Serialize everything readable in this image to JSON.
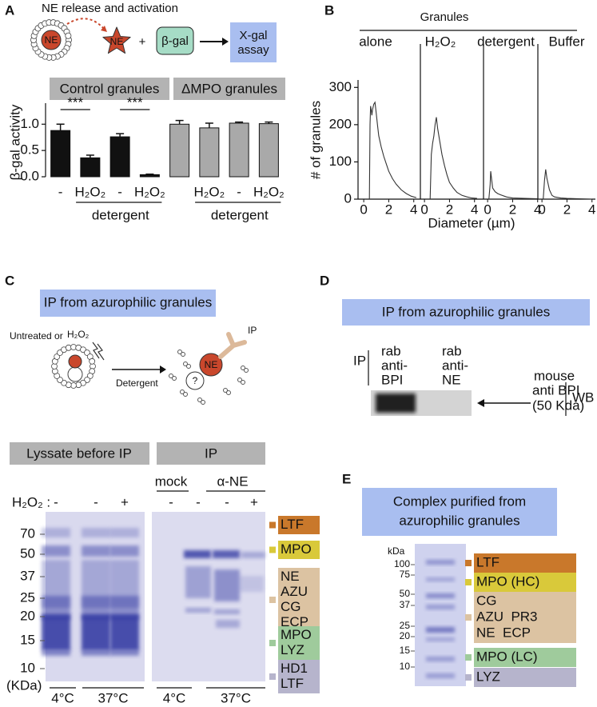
{
  "chart_data": [
    {
      "type": "bar",
      "panel": "A",
      "schematic": {
        "title": "NE release and activation",
        "ne_inside": "NE",
        "ne_released": "NE",
        "plus": "+",
        "enzyme": "β-gal",
        "assay": [
          "X-gal",
          "assay"
        ]
      },
      "groups": [
        "Control granules",
        "ΔMPO granules"
      ],
      "ylabel": "β-gal activity",
      "categories": [
        "-",
        "H₂O₂",
        "-",
        "H₂O₂",
        null,
        "H₂O₂",
        "-",
        "H₂O₂"
      ],
      "values": [
        0.88,
        0.36,
        0.76,
        0.04,
        1.0,
        0.93,
        1.02,
        1.01
      ],
      "errors": [
        0.12,
        0.05,
        0.06,
        0.01,
        0.07,
        0.09,
        0.02,
        0.03
      ],
      "colors": [
        "#111111",
        "#111111",
        "#111111",
        "#111111",
        "#a9a9a9",
        "#a9a9a9",
        "#a9a9a9",
        "#a9a9a9"
      ],
      "significance": [
        "***",
        "***"
      ],
      "treatment_labels": [
        "detergent",
        "detergent"
      ],
      "ylim": [
        0,
        1.4
      ],
      "yticks": [
        {
          "value": 0,
          "label": "0.0"
        },
        {
          "value": 0.5,
          "label": "0.5"
        },
        {
          "value": 1,
          "label": "1.0"
        }
      ]
    },
    {
      "type": "line",
      "panel": "B",
      "title": "Granules",
      "xlabel": "Diameter (µm)",
      "ylabel": "# of granules",
      "series": [
        {
          "name": "alone",
          "color": "#333333",
          "x": [
            0.45,
            0.5,
            0.55,
            0.6,
            0.65,
            0.7,
            0.8,
            0.9,
            1.0,
            1.1,
            1.2,
            1.4,
            1.6,
            1.8,
            2.0,
            2.3,
            2.6,
            3.0,
            3.4,
            3.8,
            4.2
          ],
          "values": [
            0,
            200,
            250,
            240,
            225,
            240,
            255,
            260,
            230,
            200,
            170,
            140,
            115,
            95,
            75,
            55,
            40,
            25,
            15,
            8,
            4
          ]
        },
        {
          "name": "H₂O₂",
          "color": "#333333",
          "x": [
            0.45,
            0.55,
            0.65,
            0.75,
            0.85,
            0.95,
            1.05,
            1.2,
            1.4,
            1.6,
            1.8,
            2.0,
            2.3,
            2.6,
            3.0,
            3.4,
            3.8,
            4.2
          ],
          "values": [
            0,
            120,
            150,
            170,
            200,
            220,
            190,
            160,
            120,
            90,
            65,
            45,
            30,
            18,
            10,
            6,
            3,
            2
          ]
        },
        {
          "name": "detergent",
          "color": "#333333",
          "x": [
            0.1,
            0.2,
            0.25,
            0.3,
            0.4,
            0.6,
            0.8,
            1.0,
            1.5,
            2.0,
            3.0,
            4.0
          ],
          "values": [
            0,
            40,
            75,
            60,
            30,
            20,
            15,
            12,
            6,
            3,
            2,
            1
          ]
        },
        {
          "name": "Buffer",
          "color": "#333333",
          "x": [
            0.1,
            0.2,
            0.3,
            0.4,
            0.6,
            0.8,
            1.0,
            1.5,
            2.0,
            3.0,
            4.0
          ],
          "values": [
            0,
            50,
            80,
            55,
            25,
            10,
            6,
            3,
            2,
            1,
            0
          ]
        }
      ],
      "xlim": [
        -0.2,
        4.4
      ],
      "xticks": [
        0,
        2,
        4
      ],
      "ylim": [
        0,
        320
      ],
      "yticks": [
        0,
        100,
        200,
        300
      ]
    }
  ],
  "panel_c": {
    "label": "C",
    "title": "IP from azurophilic granules",
    "schematic": {
      "condition": [
        "Untreated or",
        "H₂O₂"
      ],
      "step": "Detergent",
      "ne": "NE",
      "unknown": "?",
      "ip": "IP"
    },
    "lanes_header": [
      "Lyssate before IP",
      "IP"
    ],
    "ip_lanes": [
      "mock",
      "α-NE"
    ],
    "h2o2_label": "H₂O₂ :",
    "h2o2": [
      "-",
      "-",
      "+",
      "-",
      "-",
      "-",
      "+"
    ],
    "markers": [
      "70",
      "50",
      "37",
      "25",
      "20",
      "15",
      "10"
    ],
    "marker_unit": "(KDa)",
    "temperatures": [
      "4°C",
      "37°C",
      "4°C",
      "37°C"
    ],
    "bands": [
      [
        "LTF"
      ],
      [
        "MPO"
      ],
      [
        "NE",
        "AZU",
        "CG",
        "ECP"
      ],
      [
        "MPO",
        "LYZ"
      ],
      [
        "HD1",
        "LTF"
      ]
    ]
  },
  "panel_d": {
    "label": "D",
    "title": "IP from azurophilic granules",
    "ip": "IP",
    "antibodies": [
      [
        "rab",
        "anti-",
        "BPI"
      ],
      [
        "rab",
        "anti-",
        "NE"
      ]
    ],
    "probe": [
      "mouse",
      "anti BPI",
      "(50 Kda)"
    ],
    "wb": "WB"
  },
  "panel_e": {
    "label": "E",
    "title": [
      "Complex purified from",
      "azurophilic granules"
    ],
    "unit": "kDa",
    "markers": [
      "100",
      "75",
      "50",
      "37",
      "25",
      "20",
      "15",
      "10"
    ],
    "bands": [
      [
        "LTF"
      ],
      [
        "MPO (HC)"
      ],
      [
        "CG",
        "AZU  PR3",
        "NE  ECP"
      ],
      [
        "MPO (LC)"
      ],
      [
        "LYZ"
      ]
    ]
  }
}
